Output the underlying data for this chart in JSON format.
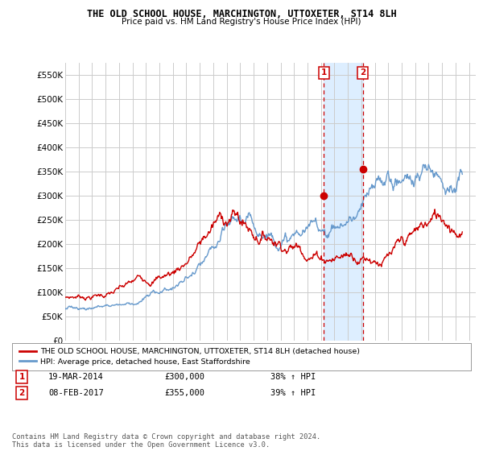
{
  "title": "THE OLD SCHOOL HOUSE, MARCHINGTON, UTTOXETER, ST14 8LH",
  "subtitle": "Price paid vs. HM Land Registry's House Price Index (HPI)",
  "ytick_vals": [
    0,
    50000,
    100000,
    150000,
    200000,
    250000,
    300000,
    350000,
    400000,
    450000,
    500000,
    550000
  ],
  "ylim": [
    0,
    575000
  ],
  "xlim_start": 1995.0,
  "xlim_end": 2025.5,
  "red_color": "#cc0000",
  "blue_color": "#6699cc",
  "sale1_x": 2014.2,
  "sale1_y": 300000,
  "sale2_x": 2017.1,
  "sale2_y": 355000,
  "legend_label1": "THE OLD SCHOOL HOUSE, MARCHINGTON, UTTOXETER, ST14 8LH (detached house)",
  "legend_label2": "HPI: Average price, detached house, East Staffordshire",
  "sale1_date": "19-MAR-2014",
  "sale1_price": "£300,000",
  "sale1_hpi": "38% ↑ HPI",
  "sale2_date": "08-FEB-2017",
  "sale2_price": "£355,000",
  "sale2_hpi": "39% ↑ HPI",
  "footnote": "Contains HM Land Registry data © Crown copyright and database right 2024.\nThis data is licensed under the Open Government Licence v3.0.",
  "background_color": "#ffffff",
  "grid_color": "#cccccc",
  "shaded_region_color": "#ddeeff"
}
